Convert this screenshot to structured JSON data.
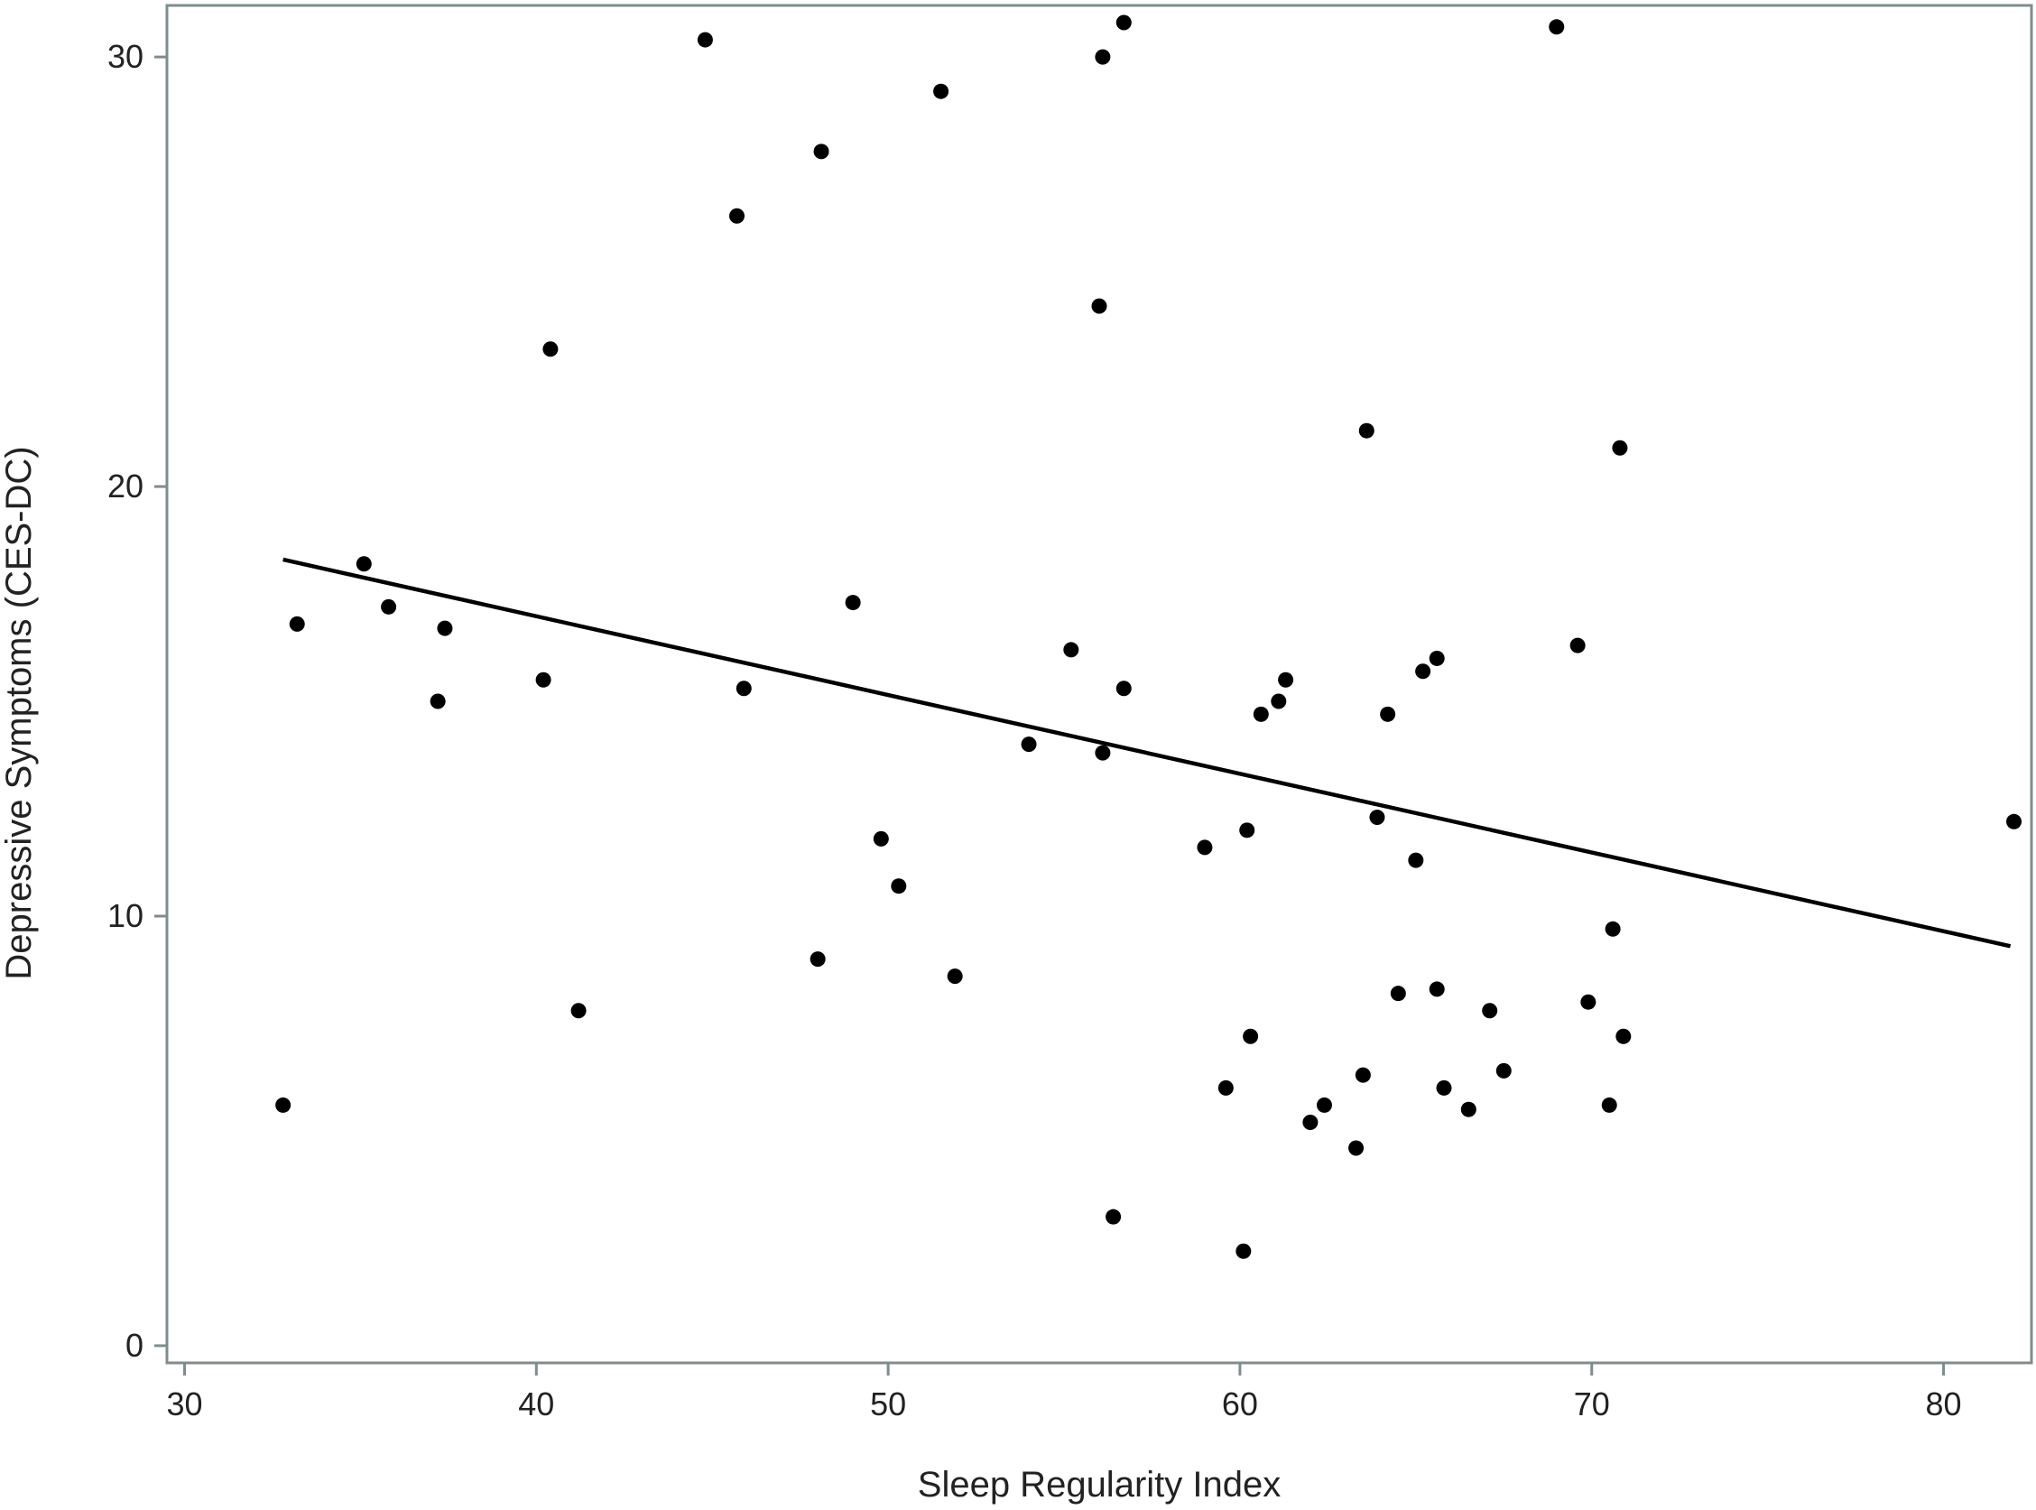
{
  "chart_data": {
    "type": "scatter",
    "title": "",
    "xlabel": "Sleep Regularity Index",
    "ylabel": "Depressive Symptoms (CES-DC)",
    "xlim": [
      29.5,
      82.5
    ],
    "ylim": [
      -0.4,
      31.2
    ],
    "xticks": [
      30,
      40,
      50,
      60,
      70,
      80
    ],
    "yticks": [
      0,
      10,
      20,
      30
    ],
    "grid": false,
    "legend": "none",
    "colors": {
      "points": "#000000",
      "line": "#000000",
      "frame": "#7f8c8d",
      "text": "#222222"
    },
    "points": [
      {
        "x": 32.8,
        "y": 5.6
      },
      {
        "x": 33.2,
        "y": 16.8
      },
      {
        "x": 35.1,
        "y": 18.2
      },
      {
        "x": 35.8,
        "y": 17.2
      },
      {
        "x": 37.2,
        "y": 15.0
      },
      {
        "x": 37.4,
        "y": 16.7
      },
      {
        "x": 40.2,
        "y": 15.5
      },
      {
        "x": 40.4,
        "y": 23.2
      },
      {
        "x": 41.2,
        "y": 7.8
      },
      {
        "x": 44.8,
        "y": 30.4
      },
      {
        "x": 45.7,
        "y": 26.3
      },
      {
        "x": 45.9,
        "y": 15.3
      },
      {
        "x": 48.0,
        "y": 9.0
      },
      {
        "x": 48.1,
        "y": 27.8
      },
      {
        "x": 49.0,
        "y": 17.3
      },
      {
        "x": 49.8,
        "y": 11.8
      },
      {
        "x": 50.3,
        "y": 10.7
      },
      {
        "x": 51.5,
        "y": 29.2
      },
      {
        "x": 51.9,
        "y": 8.6
      },
      {
        "x": 54.0,
        "y": 14.0
      },
      {
        "x": 55.2,
        "y": 16.2
      },
      {
        "x": 56.0,
        "y": 24.2
      },
      {
        "x": 56.1,
        "y": 30.0
      },
      {
        "x": 56.1,
        "y": 13.8
      },
      {
        "x": 56.4,
        "y": 3.0
      },
      {
        "x": 56.7,
        "y": 30.8
      },
      {
        "x": 56.7,
        "y": 15.3
      },
      {
        "x": 59.0,
        "y": 11.6
      },
      {
        "x": 59.6,
        "y": 6.0
      },
      {
        "x": 60.1,
        "y": 2.2
      },
      {
        "x": 60.2,
        "y": 12.0
      },
      {
        "x": 60.3,
        "y": 7.2
      },
      {
        "x": 60.6,
        "y": 14.7
      },
      {
        "x": 61.1,
        "y": 15.0
      },
      {
        "x": 61.3,
        "y": 15.5
      },
      {
        "x": 62.0,
        "y": 5.2
      },
      {
        "x": 62.4,
        "y": 5.6
      },
      {
        "x": 63.3,
        "y": 4.6
      },
      {
        "x": 63.5,
        "y": 6.3
      },
      {
        "x": 63.6,
        "y": 21.3
      },
      {
        "x": 63.9,
        "y": 12.3
      },
      {
        "x": 64.2,
        "y": 14.7
      },
      {
        "x": 64.5,
        "y": 8.2
      },
      {
        "x": 65.0,
        "y": 11.3
      },
      {
        "x": 65.2,
        "y": 15.7
      },
      {
        "x": 65.6,
        "y": 16.0
      },
      {
        "x": 65.6,
        "y": 8.3
      },
      {
        "x": 65.8,
        "y": 6.0
      },
      {
        "x": 66.5,
        "y": 5.5
      },
      {
        "x": 67.1,
        "y": 7.8
      },
      {
        "x": 67.5,
        "y": 6.4
      },
      {
        "x": 69.0,
        "y": 30.7
      },
      {
        "x": 69.6,
        "y": 16.3
      },
      {
        "x": 69.9,
        "y": 8.0
      },
      {
        "x": 70.5,
        "y": 5.6
      },
      {
        "x": 70.6,
        "y": 9.7
      },
      {
        "x": 70.8,
        "y": 20.9
      },
      {
        "x": 70.9,
        "y": 7.2
      },
      {
        "x": 82.0,
        "y": 12.2
      }
    ],
    "fit_line": {
      "x": [
        32.8,
        81.9
      ],
      "y": [
        18.3,
        9.3
      ]
    }
  }
}
